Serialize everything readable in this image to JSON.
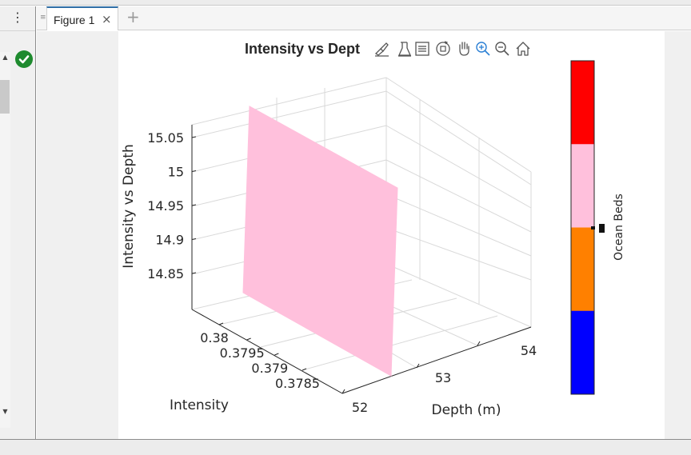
{
  "left_panel": {
    "menu_icon": "vertical-ellipsis-icon",
    "status_icon": "checkmark-icon",
    "status_color": "#1e8a2e"
  },
  "tabs": [
    {
      "label": "Figure 1",
      "close_icon": "close-icon",
      "active": true
    }
  ],
  "add_tab_icon": "plus-icon",
  "figure": {
    "toolbar": [
      "brush-icon",
      "data-tips-icon",
      "legend-icon",
      "rotate-3d-icon",
      "pan-hand-icon",
      "zoom-in-icon",
      "zoom-out-icon",
      "home-icon"
    ]
  },
  "chart_data": {
    "type": "surface",
    "title": "Intensity vs Depth",
    "title_visible": "Intensity vs Dept",
    "zlabel": "Intensity vs Depth",
    "xlabel": "Depth (m)",
    "ylabel": "Intensity",
    "x_ticks": [
      "52",
      "53",
      "54"
    ],
    "y_ticks": [
      "0.38",
      "0.3795",
      "0.379",
      "0.3785"
    ],
    "z_ticks": [
      "15.05",
      "15",
      "14.95",
      "14.9",
      "14.85"
    ],
    "surface_color": "#ffc0dc",
    "grid": true,
    "colorbar": {
      "label": "Ocean Beds",
      "colors": [
        "#ff0000",
        "#ffc0dc",
        "#ff8000",
        "#0000ff"
      ]
    }
  }
}
